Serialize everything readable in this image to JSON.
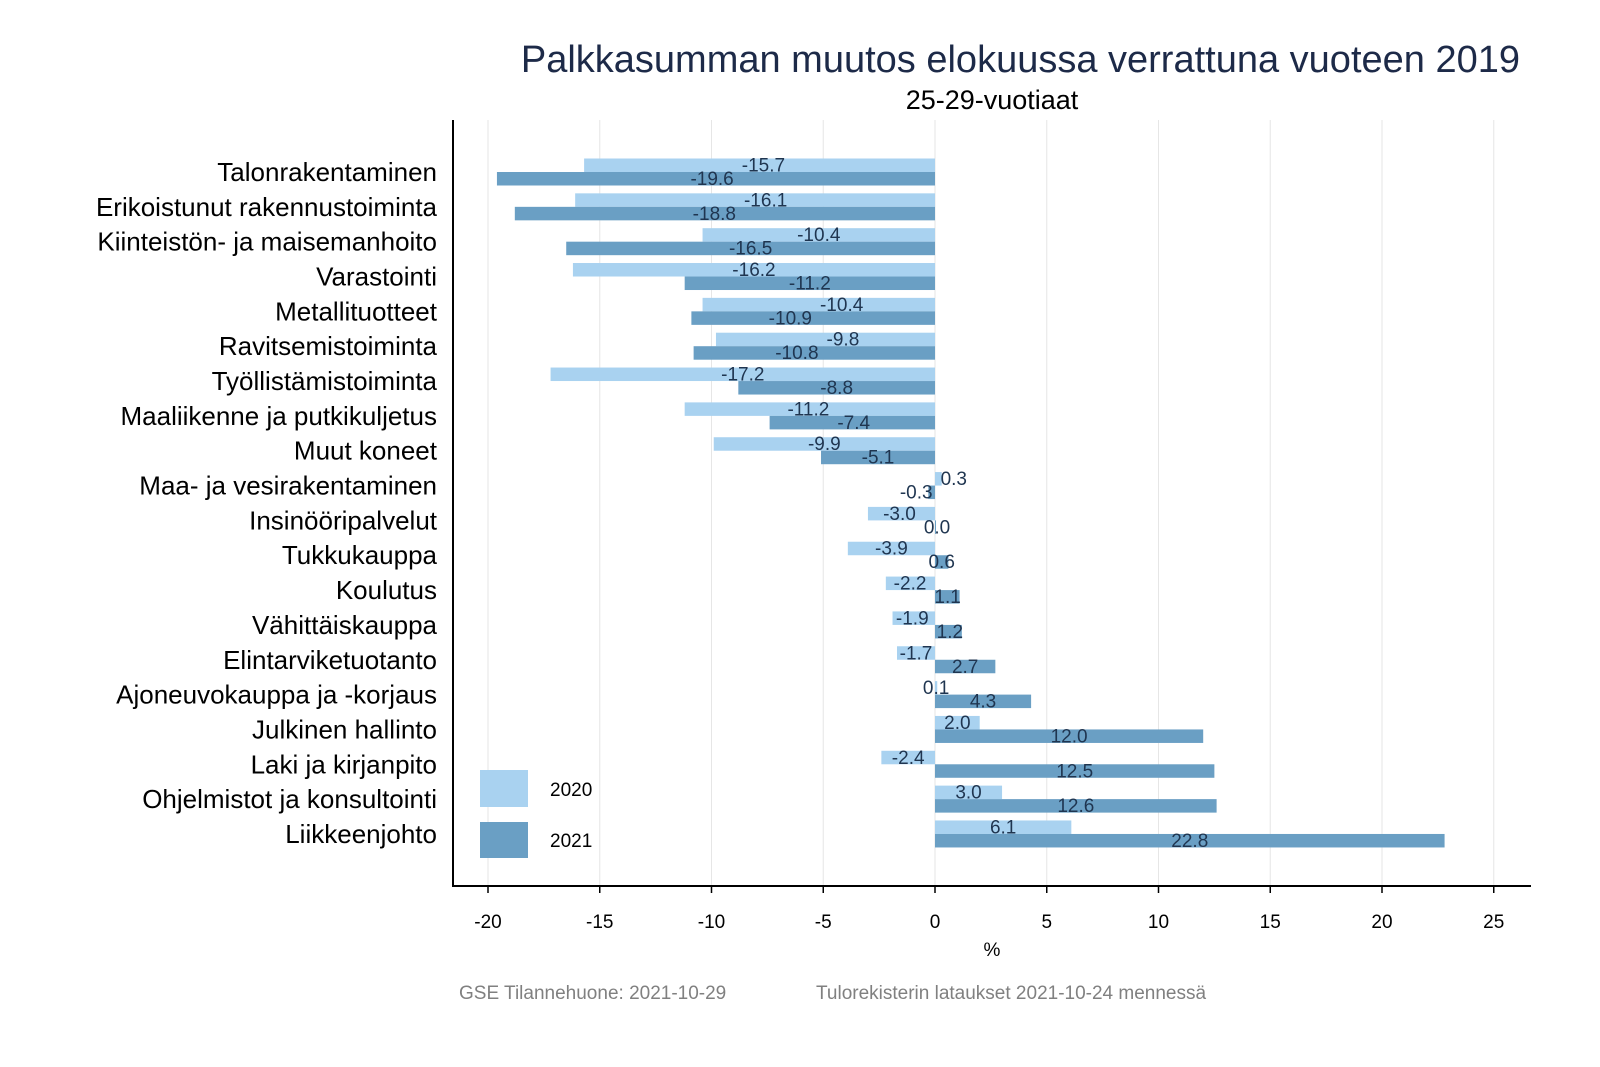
{
  "chart_data": {
    "type": "bar",
    "orientation": "horizontal",
    "title": "Palkkasumman muutos elokuussa verrattuna vuoteen 2019",
    "subtitle": "25-29-vuotiaat",
    "xlabel": "%",
    "ylabel": "",
    "xlim": [
      -21.5,
      26.5
    ],
    "xticks": [
      -20,
      -15,
      -10,
      -5,
      0,
      5,
      10,
      15,
      20,
      25
    ],
    "grid": "vertical",
    "legend_position": "bottom-left",
    "categories": [
      "Talonrakentaminen",
      "Erikoistunut rakennustoiminta",
      "Kiinteistön- ja maisemanhoito",
      "Varastointi",
      "Metallituotteet",
      "Ravitsemistoiminta",
      "Työllistämistoiminta",
      "Maaliikenne ja putkikuljetus",
      "Muut koneet",
      "Maa- ja vesirakentaminen",
      "Insinööripalvelut",
      "Tukkukauppa",
      "Koulutus",
      "Vähittäiskauppa",
      "Elintarviketuotanto",
      "Ajoneuvokauppa ja -korjaus",
      "Julkinen hallinto",
      "Laki ja kirjanpito",
      "Ohjelmistot ja konsultointi",
      "Liikkeenjohto"
    ],
    "series": [
      {
        "name": "2020",
        "color": "#a9d2f0",
        "values": [
          -15.7,
          -16.1,
          -10.4,
          -16.2,
          -10.4,
          -9.8,
          -17.2,
          -11.2,
          -9.9,
          0.3,
          -3.0,
          -3.9,
          -2.2,
          -1.9,
          -1.7,
          0.1,
          2.0,
          -2.4,
          3.0,
          6.1
        ]
      },
      {
        "name": "2021",
        "color": "#6a9fc4",
        "values": [
          -19.6,
          -18.8,
          -16.5,
          -11.2,
          -10.9,
          -10.8,
          -8.8,
          -7.4,
          -5.1,
          -0.3,
          -0.0,
          0.6,
          1.1,
          1.2,
          2.7,
          4.3,
          12.0,
          12.5,
          12.6,
          22.8
        ]
      }
    ],
    "footer_left": "GSE Tilannehuone: 2021-10-29",
    "footer_right": "Tulorekisterin lataukset 2021-10-24 mennessä"
  }
}
